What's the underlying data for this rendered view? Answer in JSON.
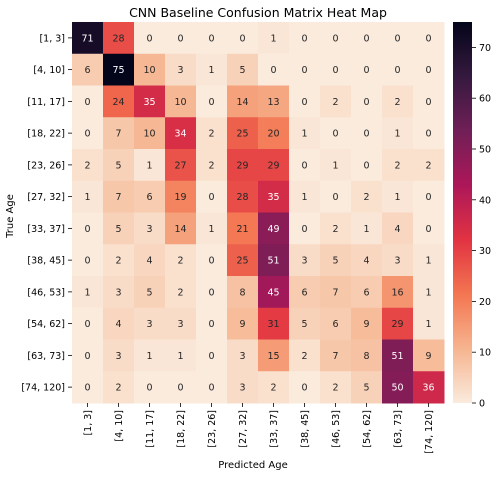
{
  "chart_data": {
    "type": "heatmap",
    "title": "CNN Baseline Confusion Matrix Heat Map",
    "xlabel": "Predicted Age",
    "ylabel": "True Age",
    "x_categories": [
      "[1, 3]",
      "[4, 10]",
      "[11, 17]",
      "[18, 22]",
      "[23, 26]",
      "[27, 32]",
      "[33, 37]",
      "[38, 45]",
      "[46, 53]",
      "[54, 62]",
      "[63, 73]",
      "[74, 120]"
    ],
    "y_categories": [
      "[1, 3]",
      "[4, 10]",
      "[11, 17]",
      "[18, 22]",
      "[23, 26]",
      "[27, 32]",
      "[33, 37]",
      "[38, 45]",
      "[46, 53]",
      "[54, 62]",
      "[63, 73]",
      "[74, 120]"
    ],
    "values": [
      [
        71,
        28,
        0,
        0,
        0,
        0,
        1,
        0,
        0,
        0,
        0,
        0
      ],
      [
        6,
        75,
        10,
        3,
        1,
        5,
        0,
        0,
        0,
        0,
        0,
        0
      ],
      [
        0,
        24,
        35,
        10,
        0,
        14,
        13,
        0,
        2,
        0,
        2,
        0
      ],
      [
        0,
        7,
        10,
        34,
        2,
        25,
        20,
        1,
        0,
        0,
        1,
        0
      ],
      [
        2,
        5,
        1,
        27,
        2,
        29,
        29,
        0,
        1,
        0,
        2,
        2
      ],
      [
        1,
        7,
        6,
        19,
        0,
        28,
        35,
        1,
        0,
        2,
        1,
        0
      ],
      [
        0,
        5,
        3,
        14,
        1,
        21,
        49,
        0,
        2,
        1,
        4,
        0
      ],
      [
        0,
        2,
        4,
        2,
        0,
        25,
        51,
        3,
        5,
        4,
        3,
        1
      ],
      [
        1,
        3,
        5,
        2,
        0,
        8,
        45,
        6,
        7,
        6,
        16,
        1
      ],
      [
        0,
        4,
        3,
        3,
        0,
        9,
        31,
        5,
        6,
        9,
        29,
        1
      ],
      [
        0,
        3,
        1,
        1,
        0,
        3,
        15,
        2,
        7,
        8,
        51,
        9
      ],
      [
        0,
        2,
        0,
        0,
        0,
        3,
        2,
        0,
        2,
        5,
        50,
        36
      ]
    ],
    "colorbar": {
      "range": [
        0,
        75
      ],
      "ticks": [
        0,
        10,
        20,
        30,
        40,
        50,
        60,
        70
      ]
    },
    "colormap": "rocket_r",
    "colormap_stops": [
      "#faebdd",
      "#f6b48f",
      "#f37651",
      "#e13342",
      "#ad1759",
      "#701f57",
      "#35193e",
      "#03051a"
    ],
    "annotation_color_light": "#ffffff",
    "annotation_color_dark": "#262626",
    "grid": false
  }
}
